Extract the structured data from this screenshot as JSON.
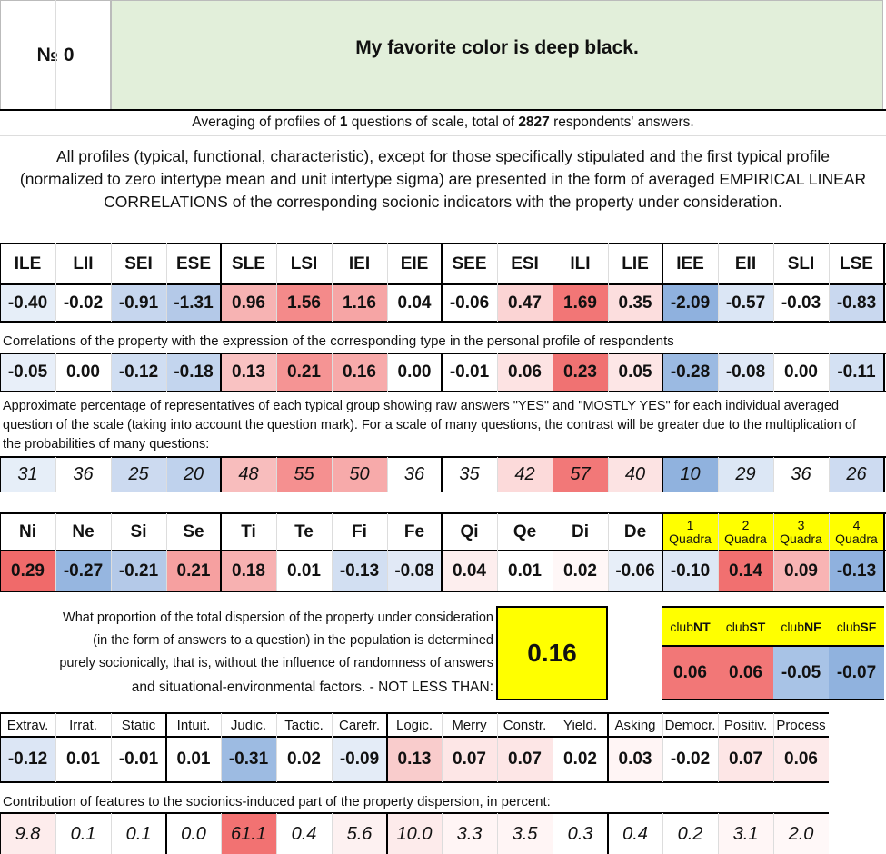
{
  "header": {
    "number_label": "№",
    "number_value": "0",
    "title": "My favorite color is deep black."
  },
  "summary": {
    "pre": "Averaging of profiles of ",
    "n_questions": "1",
    "mid": " questions of scale, total of ",
    "n_resp": "2827",
    "post": " respondents' answers."
  },
  "description": "All profiles (typical, functional, characteristic), except for those specifically stipulated and the first typical profile (normalized to zero intertype mean and unit intertype sigma) are presented in the form of averaged EMPIRICAL LINEAR CORRELATIONS of the corresponding socionic indicators with the property under consideration.",
  "types": {
    "headers": [
      "ILE",
      "LII",
      "SEI",
      "ESE",
      "SLE",
      "LSI",
      "IEI",
      "EIE",
      "SEE",
      "ESI",
      "ILI",
      "LIE",
      "IEE",
      "EII",
      "SLI",
      "LSE"
    ],
    "profile": [
      "-0.40",
      "-0.02",
      "-0.91",
      "-1.31",
      "0.96",
      "1.56",
      "1.16",
      "0.04",
      "-0.06",
      "0.47",
      "1.69",
      "0.35",
      "-2.09",
      "-0.57",
      "-0.03",
      "-0.83"
    ],
    "profile_colors": [
      "#e6eef8",
      "#ffffff",
      "#c6d6ee",
      "#b4c9e8",
      "#f7b3b3",
      "#f48a8a",
      "#f6a5a5",
      "#ffffff",
      "#ffffff",
      "#fbd4d4",
      "#f27676",
      "#fcdede",
      "#8fb1de",
      "#dbe6f5",
      "#ffffff",
      "#c9d8ef"
    ],
    "corr_caption": "Correlations of the property with the expression of the corresponding type in the personal profile of respondents",
    "corr": [
      "-0.05",
      "0.00",
      "-0.12",
      "-0.18",
      "0.13",
      "0.21",
      "0.16",
      "0.00",
      "-0.01",
      "0.06",
      "0.23",
      "0.05",
      "-0.28",
      "-0.08",
      "0.00",
      "-0.11"
    ],
    "corr_colors": [
      "#e8eff9",
      "#ffffff",
      "#d0def2",
      "#c3d5ee",
      "#f9c2c2",
      "#f59494",
      "#f7aaaa",
      "#ffffff",
      "#ffffff",
      "#fde3e3",
      "#f07272",
      "#fde6e6",
      "#9bbae2",
      "#dfe8f6",
      "#ffffff",
      "#d4e1f3"
    ],
    "pct_caption": "Approximate percentage of representatives of each typical group showing raw answers \"YES\" and \"MOSTLY YES\" for each individual averaged question of the scale (taking into account the question mark). For a scale of many questions, the contrast will be greater due to the multiplication of the probabilities of many questions:",
    "pct": [
      "31",
      "36",
      "25",
      "20",
      "48",
      "55",
      "50",
      "36",
      "35",
      "42",
      "57",
      "40",
      "10",
      "29",
      "36",
      "26"
    ],
    "pct_colors": [
      "#e6eef8",
      "#ffffff",
      "#ccdaf0",
      "#bfd2ed",
      "#f8bdbd",
      "#f59090",
      "#f7aaaa",
      "#ffffff",
      "#ffffff",
      "#fcdada",
      "#f27878",
      "#fce3e3",
      "#90b2de",
      "#dce7f5",
      "#ffffff",
      "#cddbf1"
    ]
  },
  "functions": {
    "headers": [
      "Ni",
      "Ne",
      "Si",
      "Se",
      "Ti",
      "Te",
      "Fi",
      "Fe",
      "Qi",
      "Qe",
      "Di",
      "De"
    ],
    "values": [
      "0.29",
      "-0.27",
      "-0.21",
      "0.21",
      "0.18",
      "0.01",
      "-0.13",
      "-0.08",
      "0.04",
      "0.01",
      "0.02",
      "-0.06"
    ],
    "colors": [
      "#f06a6a",
      "#96b6e0",
      "#b4c9e8",
      "#f6a0a0",
      "#f7b1b1",
      "#ffffff",
      "#d2dff2",
      "#e1e9f6",
      "#fdeeee",
      "#ffffff",
      "#fff7f7",
      "#e7eef8"
    ]
  },
  "quadras": {
    "headers": [
      {
        "n": "1",
        "t": "Quadra"
      },
      {
        "n": "2",
        "t": "Quadra"
      },
      {
        "n": "3",
        "t": "Quadra"
      },
      {
        "n": "4",
        "t": "Quadra"
      }
    ],
    "values": [
      "-0.10",
      "0.14",
      "0.09",
      "-0.13"
    ],
    "colors": [
      "#dde7f5",
      "#f17070",
      "#f8b4b4",
      "#8fb1de"
    ]
  },
  "dispersion": {
    "text_lines": [
      "What proportion of the total dispersion of the property under consideration",
      "(in the form of answers to a question) in the population is determined",
      "purely socionically, that is, without the influence of randomness of answers",
      "and situational-environmental factors. - NOT LESS THAN:"
    ],
    "value": "0.16"
  },
  "clubs": {
    "headers": [
      {
        "p": "club",
        "s": "NT"
      },
      {
        "p": "club",
        "s": "ST"
      },
      {
        "p": "club",
        "s": "NF"
      },
      {
        "p": "club",
        "s": "SF"
      }
    ],
    "values": [
      "0.06",
      "0.06",
      "-0.05",
      "-0.07"
    ],
    "colors": [
      "#f27777",
      "#f27777",
      "#a8c3e6",
      "#90b2de"
    ]
  },
  "traits": {
    "headers": [
      "Extrav.",
      "Irrat.",
      "Static",
      "Intuit.",
      "Judic.",
      "Tactic.",
      "Carefr.",
      "Logic.",
      "Merry",
      "Constr.",
      "Yield.",
      "Asking",
      "Democr.",
      "Positiv.",
      "Process"
    ],
    "values": [
      "-0.12",
      "0.01",
      "-0.01",
      "0.01",
      "-0.31",
      "0.02",
      "-0.09",
      "0.13",
      "0.07",
      "0.07",
      "0.02",
      "0.03",
      "-0.02",
      "0.07",
      "0.06"
    ],
    "colors": [
      "#dce6f5",
      "#ffffff",
      "#ffffff",
      "#ffffff",
      "#9dbbe2",
      "#ffffff",
      "#e4ecf7",
      "#f9cccc",
      "#fde6e6",
      "#fde6e6",
      "#ffffff",
      "#fff5f5",
      "#ffffff",
      "#fde6e6",
      "#fdeaea"
    ],
    "contrib_caption": "Contribution of features to the socionics-induced part of the property dispersion, in percent:",
    "contrib": [
      "9.8",
      "0.1",
      "0.1",
      "0.0",
      "61.1",
      "0.4",
      "5.6",
      "10.0",
      "3.3",
      "3.5",
      "0.3",
      "0.4",
      "0.2",
      "3.1",
      "2.0"
    ],
    "contrib_colors": [
      "#fdecec",
      "#ffffff",
      "#ffffff",
      "#ffffff",
      "#f27272",
      "#ffffff",
      "#fdf1f1",
      "#fdebeb",
      "#fff5f5",
      "#fff5f5",
      "#ffffff",
      "#ffffff",
      "#ffffff",
      "#fff6f6",
      "#fff8f8"
    ]
  }
}
